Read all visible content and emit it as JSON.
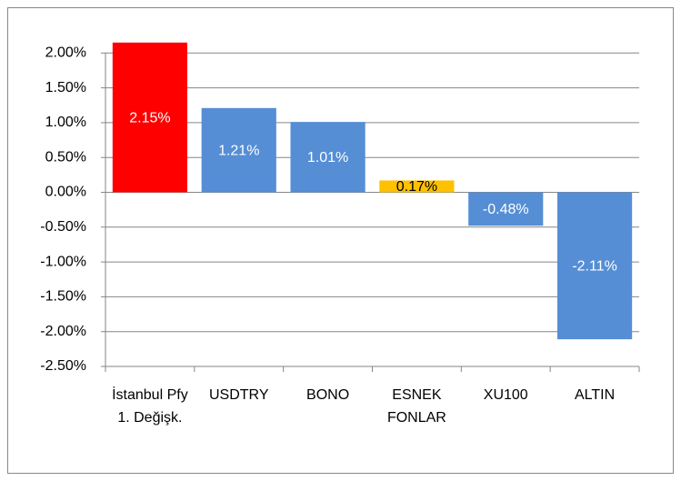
{
  "chart_data": {
    "type": "bar",
    "categories": [
      "İstanbul Pfy 1. Değişk.",
      "USDTRY",
      "BONO",
      "ESNEK FONLAR",
      "XU100",
      "ALTIN"
    ],
    "values": [
      2.15,
      1.21,
      1.01,
      0.17,
      -0.48,
      -2.11
    ],
    "value_labels": [
      "2.15%",
      "1.21%",
      "1.01%",
      "0.17%",
      "-0.48%",
      "-2.11%"
    ],
    "colors": [
      "#ff0000",
      "#558ed5",
      "#558ed5",
      "#ffc000",
      "#558ed5",
      "#558ed5"
    ],
    "label_colors": [
      "#ffffff",
      "#ffffff",
      "#ffffff",
      "#000000",
      "#ffffff",
      "#ffffff"
    ],
    "ylim": [
      -2.5,
      2.3
    ],
    "yticks": [
      {
        "value": 2,
        "label": "2.00%"
      },
      {
        "value": 1.5,
        "label": "1.50%"
      },
      {
        "value": 1,
        "label": "1.00%"
      },
      {
        "value": 0.5,
        "label": "0.50%"
      },
      {
        "value": 0,
        "label": "0.00%"
      },
      {
        "value": -0.5,
        "label": "-0.50%"
      },
      {
        "value": -1,
        "label": "-1.00%"
      },
      {
        "value": -1.5,
        "label": "-1.50%"
      },
      {
        "value": -2,
        "label": "-2.00%"
      },
      {
        "value": -2.5,
        "label": "-2.50%"
      }
    ],
    "grid": true
  }
}
